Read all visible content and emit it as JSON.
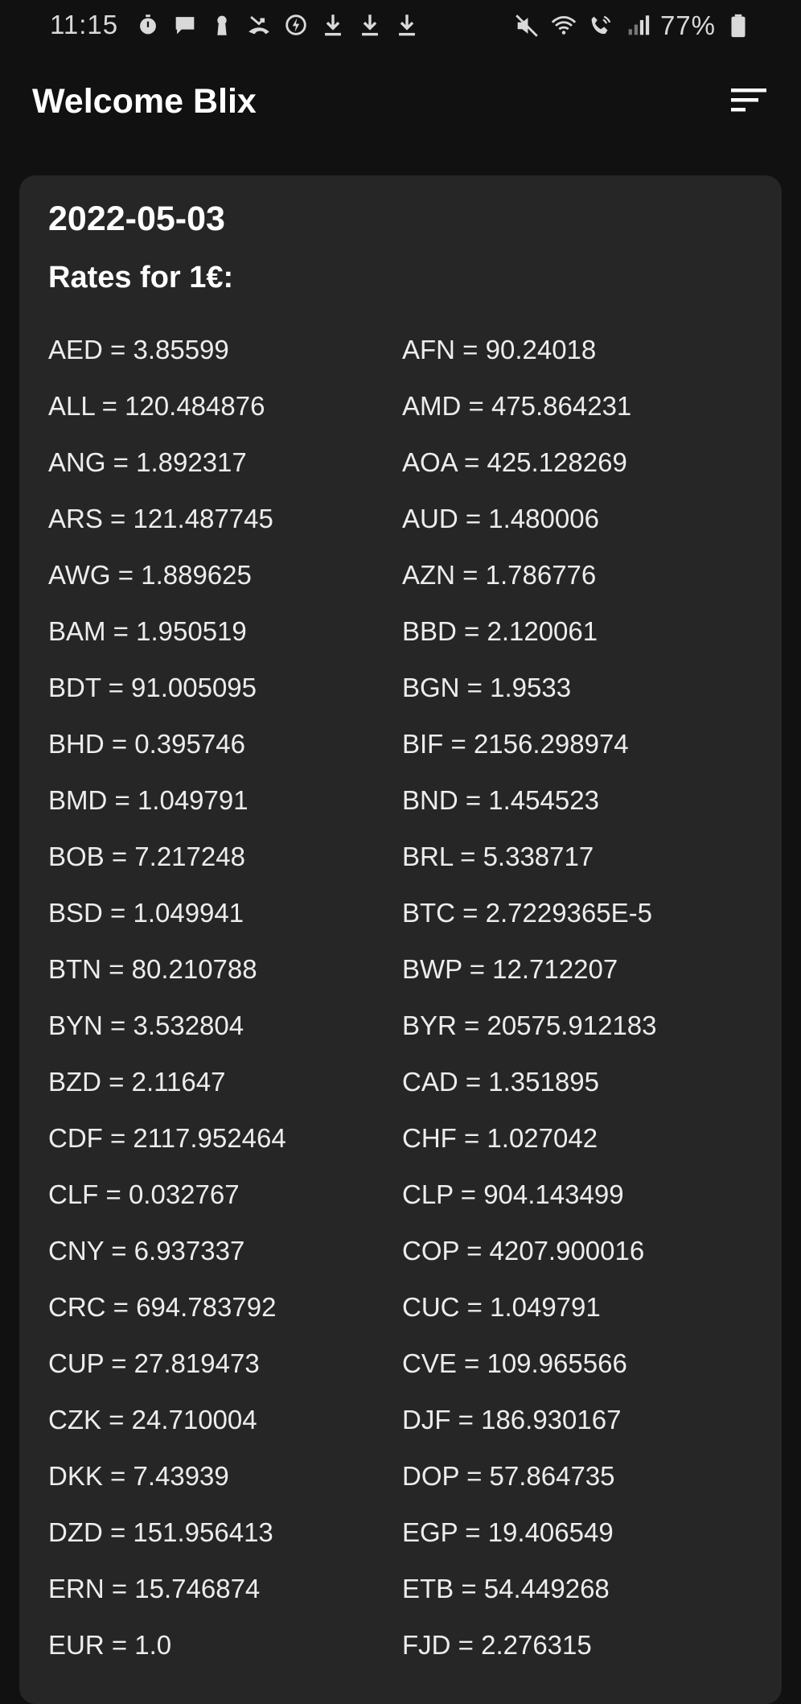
{
  "status_bar": {
    "time": "11:15",
    "battery": "77%",
    "left_icons": [
      "timer-icon",
      "message-icon",
      "keyhole-icon",
      "missed-call-icon",
      "data-saver-icon",
      "download-icon",
      "download-icon",
      "download-icon"
    ],
    "right_icons": [
      "mute-icon",
      "wifi-calling-icon",
      "volte-call-icon",
      "signal-icon",
      "battery-icon"
    ]
  },
  "app_bar": {
    "title": "Welcome Blix",
    "action_icon": "sort-icon"
  },
  "card": {
    "date": "2022-05-03",
    "subtitle": "Rates for 1€:",
    "rows": [
      [
        "AED = 3.85599",
        "AFN = 90.24018"
      ],
      [
        "ALL = 120.484876",
        "AMD = 475.864231"
      ],
      [
        "ANG = 1.892317",
        "AOA = 425.128269"
      ],
      [
        "ARS = 121.487745",
        "AUD = 1.480006"
      ],
      [
        "AWG = 1.889625",
        "AZN = 1.786776"
      ],
      [
        "BAM = 1.950519",
        "BBD = 2.120061"
      ],
      [
        "BDT = 91.005095",
        "BGN = 1.9533"
      ],
      [
        "BHD = 0.395746",
        "BIF = 2156.298974"
      ],
      [
        "BMD = 1.049791",
        "BND = 1.454523"
      ],
      [
        "BOB = 7.217248",
        "BRL = 5.338717"
      ],
      [
        "BSD = 1.049941",
        "BTC = 2.7229365E-5"
      ],
      [
        "BTN = 80.210788",
        "BWP = 12.712207"
      ],
      [
        "BYN = 3.532804",
        "BYR = 20575.912183"
      ],
      [
        "BZD = 2.11647",
        "CAD = 1.351895"
      ],
      [
        "CDF = 2117.952464",
        "CHF = 1.027042"
      ],
      [
        "CLF = 0.032767",
        "CLP = 904.143499"
      ],
      [
        "CNY = 6.937337",
        "COP = 4207.900016"
      ],
      [
        "CRC = 694.783792",
        "CUC = 1.049791"
      ],
      [
        "CUP = 27.819473",
        "CVE = 109.965566"
      ],
      [
        "CZK = 24.710004",
        "DJF = 186.930167"
      ],
      [
        "DKK = 7.43939",
        "DOP = 57.864735"
      ],
      [
        "DZD = 151.956413",
        "EGP = 19.406549"
      ],
      [
        "ERN = 15.746874",
        "ETB = 54.449268"
      ],
      [
        "EUR = 1.0",
        "FJD = 2.276315"
      ]
    ]
  }
}
